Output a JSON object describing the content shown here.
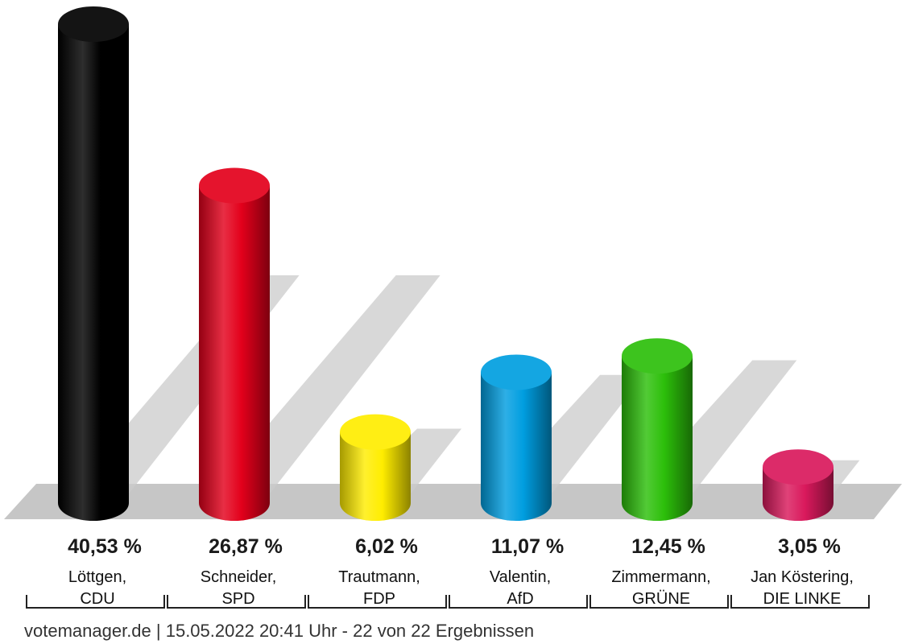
{
  "chart_data": {
    "type": "bar",
    "categories": [
      "Löttgen, CDU",
      "Schneider, SPD",
      "Trautmann, FDP",
      "Valentin, AfD",
      "Zimmermann, GRÜNE",
      "Jan Köstering, DIE LINKE"
    ],
    "values": [
      40.53,
      26.87,
      6.02,
      11.07,
      12.45,
      3.05
    ],
    "value_labels": [
      "40,53 %",
      "26,87 %",
      "6,02 %",
      "11,07 %",
      "12,45 %",
      "3,05 %"
    ],
    "candidates": [
      {
        "line1": "Löttgen,",
        "line2": "CDU",
        "color": "#000000"
      },
      {
        "line1": "Schneider,",
        "line2": "SPD",
        "color": "#e3001b"
      },
      {
        "line1": "Trautmann,",
        "line2": "FDP",
        "color": "#ffed00"
      },
      {
        "line1": "Valentin,",
        "line2": "AfD",
        "color": "#009ee0"
      },
      {
        "line1": "Zimmermann,",
        "line2": "GRÜNE",
        "color": "#2cbf0a"
      },
      {
        "line1": "Jan Köstering,",
        "line2": "DIE LINKE",
        "color": "#d9195c"
      }
    ],
    "grid": false,
    "legend": "none"
  },
  "footer": {
    "text": "votemanager.de | 15.05.2022 20:41 Uhr - 22 von 22 Ergebnissen"
  }
}
